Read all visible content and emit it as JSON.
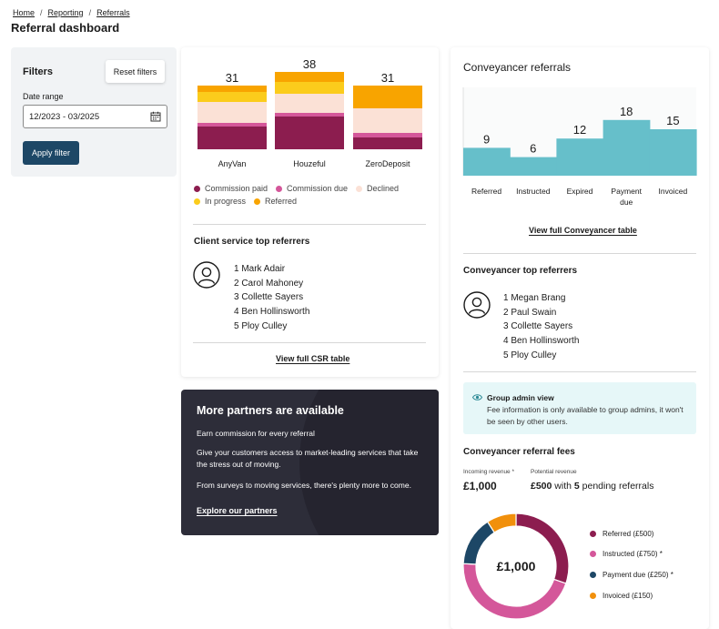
{
  "breadcrumb": {
    "home": "Home",
    "reporting": "Reporting",
    "referrals": "Referrals",
    "sep": "/"
  },
  "page_title": "Referral dashboard",
  "filters": {
    "title": "Filters",
    "reset_label": "Reset filters",
    "date_label": "Date range",
    "date_value": "12/2023 - 03/2025",
    "apply_label": "Apply filter"
  },
  "chart_data": [
    {
      "type": "bar",
      "stacked": true,
      "categories": [
        "AnyVan",
        "Houzeful",
        "ZeroDeposit"
      ],
      "totals": [
        31,
        38,
        31
      ],
      "series": [
        {
          "name": "Commission paid",
          "color": "#8c1d4f",
          "values": [
            11,
            16,
            6
          ]
        },
        {
          "name": "Commission due",
          "color": "#d4579a",
          "values": [
            2,
            2,
            2
          ]
        },
        {
          "name": "Declined",
          "color": "#fbe1d6",
          "values": [
            10,
            9,
            12
          ]
        },
        {
          "name": "In progress",
          "color": "#fbcc1c",
          "values": [
            5,
            6,
            0
          ]
        },
        {
          "name": "Referred",
          "color": "#f8a400",
          "values": [
            3,
            5,
            11
          ]
        }
      ]
    },
    {
      "type": "area",
      "title": "Conveyancer referrals",
      "categories": [
        "Referred",
        "Instructed",
        "Expired",
        "Payment due",
        "Invoiced"
      ],
      "values": [
        9,
        6,
        12,
        18,
        15
      ],
      "color": "#66bfca",
      "ylim": [
        0,
        30
      ]
    },
    {
      "type": "pie",
      "donut": true,
      "center_label": "£1,000",
      "labels": [
        "Referred (£500)",
        "Instructed (£750) *",
        "Payment due (£250) *",
        "Invoiced (£150)"
      ],
      "values": [
        500,
        750,
        250,
        150
      ],
      "colors": [
        "#8c1d4f",
        "#d4579a",
        "#1d4766",
        "#f1900c"
      ]
    }
  ],
  "csr": {
    "title": "Client service top referrers",
    "items": [
      "1 Mark Adair",
      "2 Carol Mahoney",
      "3 Collette Sayers",
      "4 Ben Hollinsworth",
      "5 Ploy Culley"
    ],
    "link": "View full CSR table"
  },
  "promo": {
    "title": "More partners are available",
    "line1": "Earn commission for every referral",
    "line2": "Give your customers access to market-leading services that take the stress out of moving.",
    "line3": "From surveys to moving services, there's plenty more to come.",
    "link": "Explore our partners"
  },
  "conveyancer": {
    "title": "Conveyancer referrals",
    "cat_labels": [
      "Referred",
      "Instructed",
      "Expired",
      "Payment\ndue",
      "Invoiced"
    ],
    "link": "View full Conveyancer table",
    "top_title": "Conveyancer top referrers",
    "top_items": [
      "1 Megan Brang",
      "2 Paul Swain",
      "3 Collette Sayers",
      "4 Ben Hollinsworth",
      "5 Ploy Culley"
    ]
  },
  "group_admin": {
    "title": "Group admin view",
    "text": "Fee information is only available to group admins, it won't be seen by other users."
  },
  "fees": {
    "title": "Conveyancer referral fees",
    "incoming_label": "Incoming revenue *",
    "incoming_value": "£1,000",
    "potential_label": "Potential revenue",
    "potential_value": "£500",
    "potential_with": "with",
    "pending_count": "5",
    "pending_label": "pending referrals"
  },
  "colors": {
    "accent": "#1d4766",
    "teal": "#66bfca",
    "promo_bg": "#2d2d39"
  }
}
